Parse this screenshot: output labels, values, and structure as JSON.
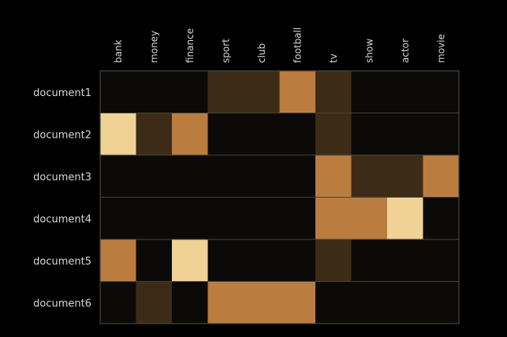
{
  "chart_data": {
    "type": "heatmap",
    "title": "",
    "xlabel": "",
    "ylabel": "",
    "columns": [
      "bank",
      "money",
      "finance",
      "sport",
      "club",
      "football",
      "tv",
      "show",
      "actor",
      "movie"
    ],
    "rows": [
      "document1",
      "document2",
      "document3",
      "document4",
      "document5",
      "document6"
    ],
    "values": [
      [
        0,
        0,
        0,
        1,
        1,
        2,
        1,
        0,
        0,
        0
      ],
      [
        3,
        1,
        2,
        0,
        0,
        0,
        1,
        0,
        0,
        0
      ],
      [
        0,
        0,
        0,
        0,
        0,
        0,
        2,
        1,
        1,
        2
      ],
      [
        0,
        0,
        0,
        0,
        0,
        0,
        2,
        2,
        3,
        0
      ],
      [
        2,
        0,
        3,
        0,
        0,
        0,
        1,
        0,
        0,
        0
      ],
      [
        0,
        1,
        0,
        2,
        2,
        2,
        0,
        0,
        0,
        0
      ]
    ],
    "value_range": [
      0,
      3
    ],
    "colors": [
      "#0b0a08",
      "#3c2c17",
      "#bb7c40",
      "#f0d296"
    ],
    "grid_color": "#4a4532",
    "background": "#000000",
    "grid": true,
    "legend": false
  }
}
